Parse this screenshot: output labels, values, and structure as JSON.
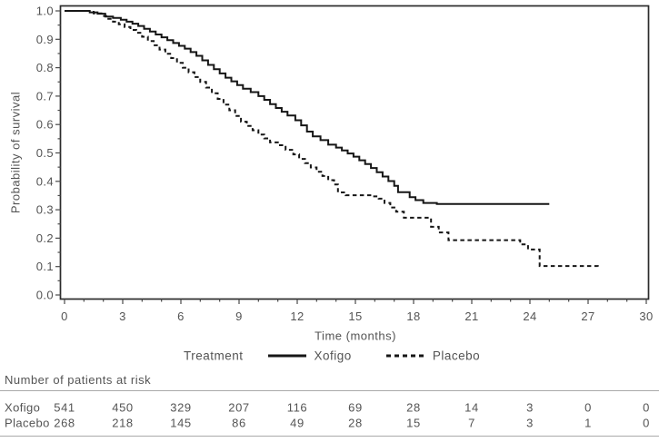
{
  "chart_data": {
    "type": "line",
    "subtype": "kaplan-meier-step",
    "title": "",
    "ylabel": "Probability of survival",
    "xlabel": "Time (months)",
    "xlim": [
      0,
      30
    ],
    "ylim": [
      0.0,
      1.0
    ],
    "x_tick_labels": [
      "0",
      "3",
      "6",
      "9",
      "12",
      "15",
      "18",
      "21",
      "24",
      "27",
      "30"
    ],
    "x_major_step": 3,
    "x_minor_step": 1,
    "y_tick_labels": [
      "0.0",
      "0.1",
      "0.2",
      "0.3",
      "0.4",
      "0.5",
      "0.6",
      "0.7",
      "0.8",
      "0.9",
      "1.0"
    ],
    "y_major_step": 0.1,
    "y_minor_step": 0.05,
    "grid": "off",
    "legend_position": "bottom",
    "series": [
      {
        "name": "Xofigo",
        "line_style": "solid",
        "steps": [
          [
            0,
            1.0
          ],
          [
            1.3,
            0.995
          ],
          [
            1.7,
            0.99
          ],
          [
            2.1,
            0.98
          ],
          [
            2.5,
            0.975
          ],
          [
            2.9,
            0.969
          ],
          [
            3.2,
            0.962
          ],
          [
            3.5,
            0.955
          ],
          [
            3.8,
            0.947
          ],
          [
            4.1,
            0.937
          ],
          [
            4.4,
            0.927
          ],
          [
            4.7,
            0.917
          ],
          [
            5.0,
            0.907
          ],
          [
            5.3,
            0.897
          ],
          [
            5.6,
            0.887
          ],
          [
            5.9,
            0.877
          ],
          [
            6.2,
            0.867
          ],
          [
            6.5,
            0.855
          ],
          [
            6.8,
            0.842
          ],
          [
            7.1,
            0.826
          ],
          [
            7.4,
            0.81
          ],
          [
            7.7,
            0.795
          ],
          [
            8.0,
            0.78
          ],
          [
            8.3,
            0.765
          ],
          [
            8.6,
            0.752
          ],
          [
            8.9,
            0.739
          ],
          [
            9.2,
            0.726
          ],
          [
            9.6,
            0.714
          ],
          [
            10.0,
            0.7
          ],
          [
            10.3,
            0.687
          ],
          [
            10.6,
            0.672
          ],
          [
            10.9,
            0.658
          ],
          [
            11.2,
            0.645
          ],
          [
            11.5,
            0.632
          ],
          [
            11.9,
            0.615
          ],
          [
            12.2,
            0.597
          ],
          [
            12.5,
            0.575
          ],
          [
            12.8,
            0.558
          ],
          [
            13.2,
            0.545
          ],
          [
            13.6,
            0.529
          ],
          [
            14.0,
            0.519
          ],
          [
            14.3,
            0.509
          ],
          [
            14.6,
            0.498
          ],
          [
            14.9,
            0.487
          ],
          [
            15.2,
            0.474
          ],
          [
            15.5,
            0.461
          ],
          [
            15.8,
            0.447
          ],
          [
            16.1,
            0.432
          ],
          [
            16.4,
            0.417
          ],
          [
            16.7,
            0.401
          ],
          [
            17.0,
            0.384
          ],
          [
            17.2,
            0.362
          ],
          [
            17.8,
            0.344
          ],
          [
            18.1,
            0.334
          ],
          [
            18.5,
            0.324
          ],
          [
            19.2,
            0.32
          ],
          [
            25.0,
            0.32
          ]
        ]
      },
      {
        "name": "Placebo",
        "line_style": "dashed",
        "steps": [
          [
            0,
            1.0
          ],
          [
            1.5,
            0.991
          ],
          [
            1.9,
            0.982
          ],
          [
            2.2,
            0.972
          ],
          [
            2.5,
            0.962
          ],
          [
            2.8,
            0.953
          ],
          [
            3.1,
            0.943
          ],
          [
            3.4,
            0.933
          ],
          [
            3.7,
            0.923
          ],
          [
            4.0,
            0.909
          ],
          [
            4.3,
            0.894
          ],
          [
            4.6,
            0.879
          ],
          [
            4.9,
            0.864
          ],
          [
            5.2,
            0.849
          ],
          [
            5.5,
            0.834
          ],
          [
            5.8,
            0.817
          ],
          [
            6.1,
            0.8
          ],
          [
            6.4,
            0.784
          ],
          [
            6.7,
            0.767
          ],
          [
            7.0,
            0.75
          ],
          [
            7.3,
            0.73
          ],
          [
            7.6,
            0.71
          ],
          [
            7.9,
            0.69
          ],
          [
            8.2,
            0.67
          ],
          [
            8.5,
            0.65
          ],
          [
            8.8,
            0.63
          ],
          [
            9.1,
            0.61
          ],
          [
            9.4,
            0.595
          ],
          [
            9.7,
            0.58
          ],
          [
            10.0,
            0.565
          ],
          [
            10.3,
            0.551
          ],
          [
            10.6,
            0.537
          ],
          [
            11.0,
            0.527
          ],
          [
            11.4,
            0.511
          ],
          [
            11.8,
            0.495
          ],
          [
            12.1,
            0.479
          ],
          [
            12.4,
            0.464
          ],
          [
            12.7,
            0.449
          ],
          [
            13.0,
            0.434
          ],
          [
            13.3,
            0.419
          ],
          [
            13.6,
            0.404
          ],
          [
            13.9,
            0.389
          ],
          [
            14.1,
            0.361
          ],
          [
            14.5,
            0.351
          ],
          [
            15.9,
            0.347
          ],
          [
            16.2,
            0.339
          ],
          [
            16.5,
            0.324
          ],
          [
            16.8,
            0.308
          ],
          [
            17.1,
            0.293
          ],
          [
            17.5,
            0.272
          ],
          [
            18.9,
            0.24
          ],
          [
            19.3,
            0.22
          ],
          [
            19.8,
            0.193
          ],
          [
            23.5,
            0.178
          ],
          [
            23.9,
            0.16
          ],
          [
            24.5,
            0.102
          ],
          [
            27.5,
            0.1
          ]
        ]
      }
    ]
  },
  "legend": {
    "title": "Treatment",
    "items": [
      {
        "label": "Xofigo",
        "style": "solid"
      },
      {
        "label": "Placebo",
        "style": "dashed"
      }
    ]
  },
  "at_risk": {
    "header": "Number of patients at risk",
    "time_points": [
      0,
      3,
      6,
      9,
      12,
      15,
      18,
      21,
      24,
      27,
      30
    ],
    "rows": [
      {
        "label": "Xofigo",
        "values": [
          "541",
          "450",
          "329",
          "207",
          "116",
          "69",
          "28",
          "14",
          "3",
          "0",
          "0"
        ]
      },
      {
        "label": "Placebo",
        "values": [
          "268",
          "218",
          "145",
          "86",
          "49",
          "28",
          "15",
          "7",
          "3",
          "1",
          "0"
        ]
      }
    ]
  },
  "colors": {
    "curve": "#161616",
    "frame": "#2b2b2b",
    "tick": "#4a4a4a",
    "text": "#545454",
    "rule": "#a9a9a9",
    "background": "#ffffff"
  }
}
